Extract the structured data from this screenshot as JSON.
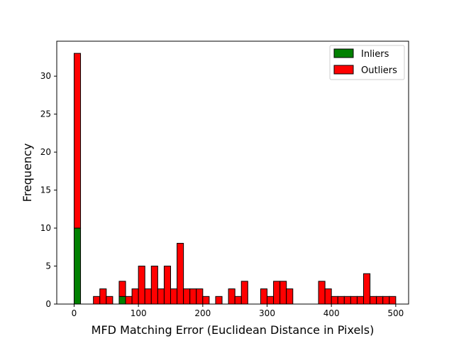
{
  "chart_data": {
    "type": "bar",
    "title": "",
    "xlabel": "MFD Matching Error (Euclidean Distance in Pixels)",
    "ylabel": "Frequency",
    "xlim": [
      -27,
      520
    ],
    "ylim": [
      0,
      34.6
    ],
    "x_ticks": [
      0,
      100,
      200,
      300,
      400,
      500
    ],
    "y_ticks": [
      0,
      5,
      10,
      15,
      20,
      25,
      30
    ],
    "bin_width": 10,
    "grid": false,
    "legend_position": "top-right",
    "series": [
      {
        "name": "Inliers",
        "color": "#008000",
        "bins": [
          {
            "x0": 0,
            "x1": 10,
            "value": 10
          },
          {
            "x0": 70,
            "x1": 80,
            "value": 1
          }
        ]
      },
      {
        "name": "Outliers",
        "color": "#ff0000",
        "bins": [
          {
            "x0": 0,
            "x1": 10,
            "value": 23,
            "base": 10
          },
          {
            "x0": 30,
            "x1": 40,
            "value": 1
          },
          {
            "x0": 40,
            "x1": 50,
            "value": 2
          },
          {
            "x0": 50,
            "x1": 60,
            "value": 1
          },
          {
            "x0": 70,
            "x1": 80,
            "value": 2,
            "base": 1
          },
          {
            "x0": 80,
            "x1": 90,
            "value": 1
          },
          {
            "x0": 90,
            "x1": 100,
            "value": 2
          },
          {
            "x0": 100,
            "x1": 110,
            "value": 5
          },
          {
            "x0": 110,
            "x1": 120,
            "value": 2
          },
          {
            "x0": 120,
            "x1": 130,
            "value": 5
          },
          {
            "x0": 130,
            "x1": 140,
            "value": 2
          },
          {
            "x0": 140,
            "x1": 150,
            "value": 5
          },
          {
            "x0": 150,
            "x1": 160,
            "value": 2
          },
          {
            "x0": 160,
            "x1": 170,
            "value": 8
          },
          {
            "x0": 170,
            "x1": 180,
            "value": 2
          },
          {
            "x0": 180,
            "x1": 190,
            "value": 2
          },
          {
            "x0": 190,
            "x1": 200,
            "value": 2
          },
          {
            "x0": 200,
            "x1": 210,
            "value": 1
          },
          {
            "x0": 220,
            "x1": 230,
            "value": 1
          },
          {
            "x0": 240,
            "x1": 250,
            "value": 2
          },
          {
            "x0": 250,
            "x1": 260,
            "value": 1
          },
          {
            "x0": 260,
            "x1": 270,
            "value": 3
          },
          {
            "x0": 290,
            "x1": 300,
            "value": 2
          },
          {
            "x0": 300,
            "x1": 310,
            "value": 1
          },
          {
            "x0": 310,
            "x1": 320,
            "value": 3
          },
          {
            "x0": 320,
            "x1": 330,
            "value": 3
          },
          {
            "x0": 330,
            "x1": 340,
            "value": 2
          },
          {
            "x0": 380,
            "x1": 390,
            "value": 3
          },
          {
            "x0": 390,
            "x1": 400,
            "value": 2
          },
          {
            "x0": 400,
            "x1": 410,
            "value": 1
          },
          {
            "x0": 410,
            "x1": 420,
            "value": 1
          },
          {
            "x0": 420,
            "x1": 430,
            "value": 1
          },
          {
            "x0": 430,
            "x1": 440,
            "value": 1
          },
          {
            "x0": 440,
            "x1": 450,
            "value": 1
          },
          {
            "x0": 450,
            "x1": 460,
            "value": 4
          },
          {
            "x0": 460,
            "x1": 470,
            "value": 1
          },
          {
            "x0": 470,
            "x1": 480,
            "value": 1
          },
          {
            "x0": 480,
            "x1": 490,
            "value": 1
          },
          {
            "x0": 490,
            "x1": 500,
            "value": 1
          }
        ]
      }
    ]
  }
}
